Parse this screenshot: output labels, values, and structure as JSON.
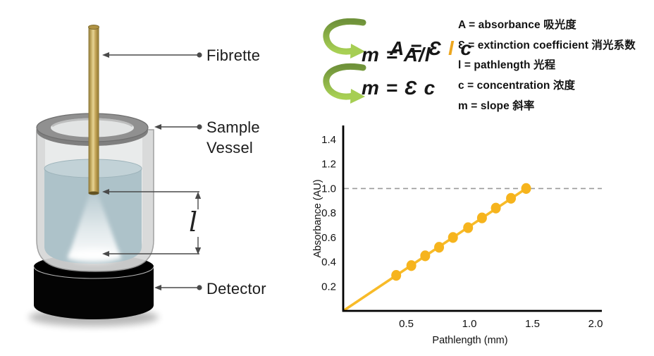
{
  "illustration": {
    "fibrette_label": "Fibrette",
    "sample_vessel_label_line1": "Sample",
    "sample_vessel_label_line2": "Vessel",
    "detector_label": "Detector",
    "pathlength_symbol": "l",
    "colors": {
      "fibrette_rod": "#c4ab61",
      "liquid": "#adc2c9",
      "detector": "#000000",
      "glass": "#d7d8d8",
      "rim": "#8d8d8d"
    }
  },
  "equations": {
    "eq1_prefix": "A = Ɛ ",
    "eq1_highlight": "l",
    "eq1_suffix": " c",
    "eq2": "m = A/l",
    "eq3": "m = Ɛ c",
    "highlight_color": "#eda61f",
    "arrow_color_top": "#6f923a",
    "arrow_color_bottom": "#a8d054"
  },
  "legend": {
    "items": [
      "A = absorbance 吸光度",
      "Ɛ = extinction coefficient 消光系数",
      "l = pathlength 光程",
      "c = concentration 浓度",
      "m = slope 斜率"
    ]
  },
  "chart_data": {
    "type": "scatter",
    "title": "",
    "xlabel": "Pathlength (mm)",
    "ylabel": "Absorbance (AU)",
    "xlim": [
      0,
      2.05
    ],
    "ylim": [
      0,
      1.52
    ],
    "xticks": [
      0.5,
      1.0,
      1.5,
      2.0
    ],
    "yticks": [
      0.2,
      0.4,
      0.6,
      0.8,
      1.0,
      1.2,
      1.4
    ],
    "grid": false,
    "legend_position": "none",
    "points": {
      "x": [
        0.42,
        0.54,
        0.65,
        0.76,
        0.87,
        0.99,
        1.1,
        1.21,
        1.33,
        1.45
      ],
      "y": [
        0.29,
        0.37,
        0.45,
        0.52,
        0.6,
        0.68,
        0.76,
        0.84,
        0.92,
        1.0
      ]
    },
    "trendline": {
      "x": [
        0,
        1.45
      ],
      "y": [
        0,
        1.0
      ]
    },
    "reference_line_y": 1.0,
    "point_color": "#f6b41d",
    "line_color": "#f8bb28",
    "reference_line_color": "#9a9a9a",
    "axis_color": "#000000"
  }
}
